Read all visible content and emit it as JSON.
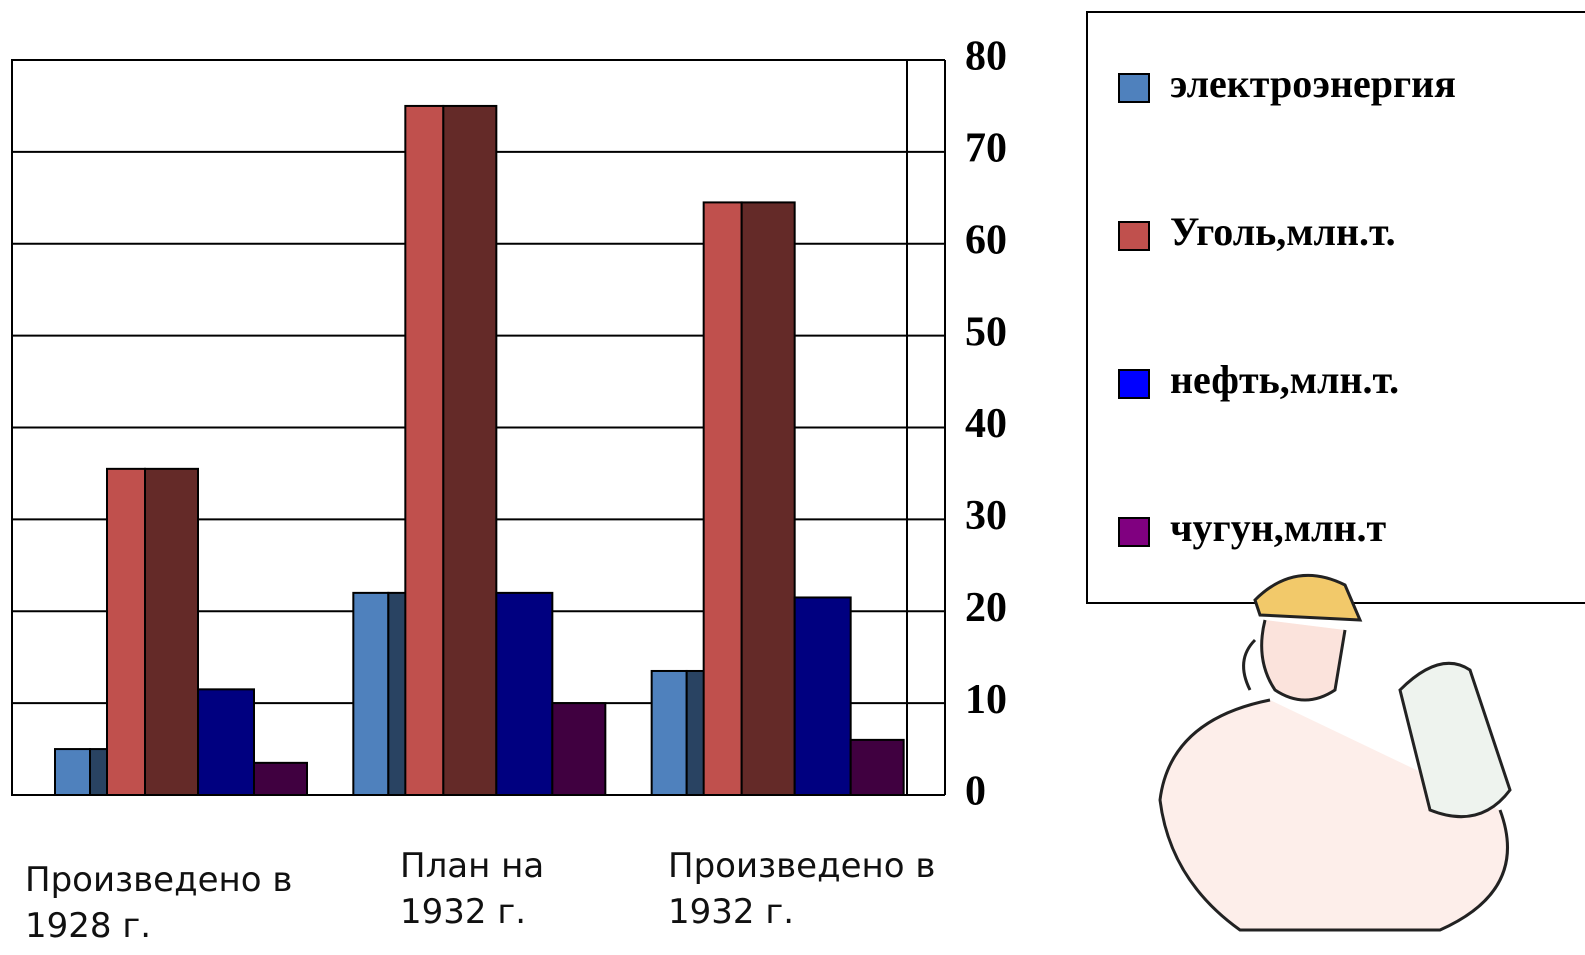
{
  "chart_data": {
    "type": "bar",
    "categories": [
      "Произведено в 1928 г.",
      "План на 1932 г.",
      "Произведено в 1932 г."
    ],
    "series": [
      {
        "name": "электроэнергия",
        "color": "#4f81bd",
        "values": [
          5,
          22,
          13.5
        ]
      },
      {
        "name": "Уголь,млн.т.",
        "color": "#c0504d",
        "values": [
          35.5,
          75,
          64.5
        ]
      },
      {
        "name": "нефть,млн.т.",
        "color": "#0000ff",
        "values": [
          11.5,
          22,
          21.5
        ]
      },
      {
        "name": "чугун,млн.т",
        "color": "#800080",
        "values": [
          3.5,
          10,
          6
        ]
      }
    ],
    "ylim": [
      0,
      80
    ],
    "yticks": [
      0,
      10,
      20,
      30,
      40,
      50,
      60,
      70,
      80
    ],
    "grid": true,
    "legend": "right"
  }
}
